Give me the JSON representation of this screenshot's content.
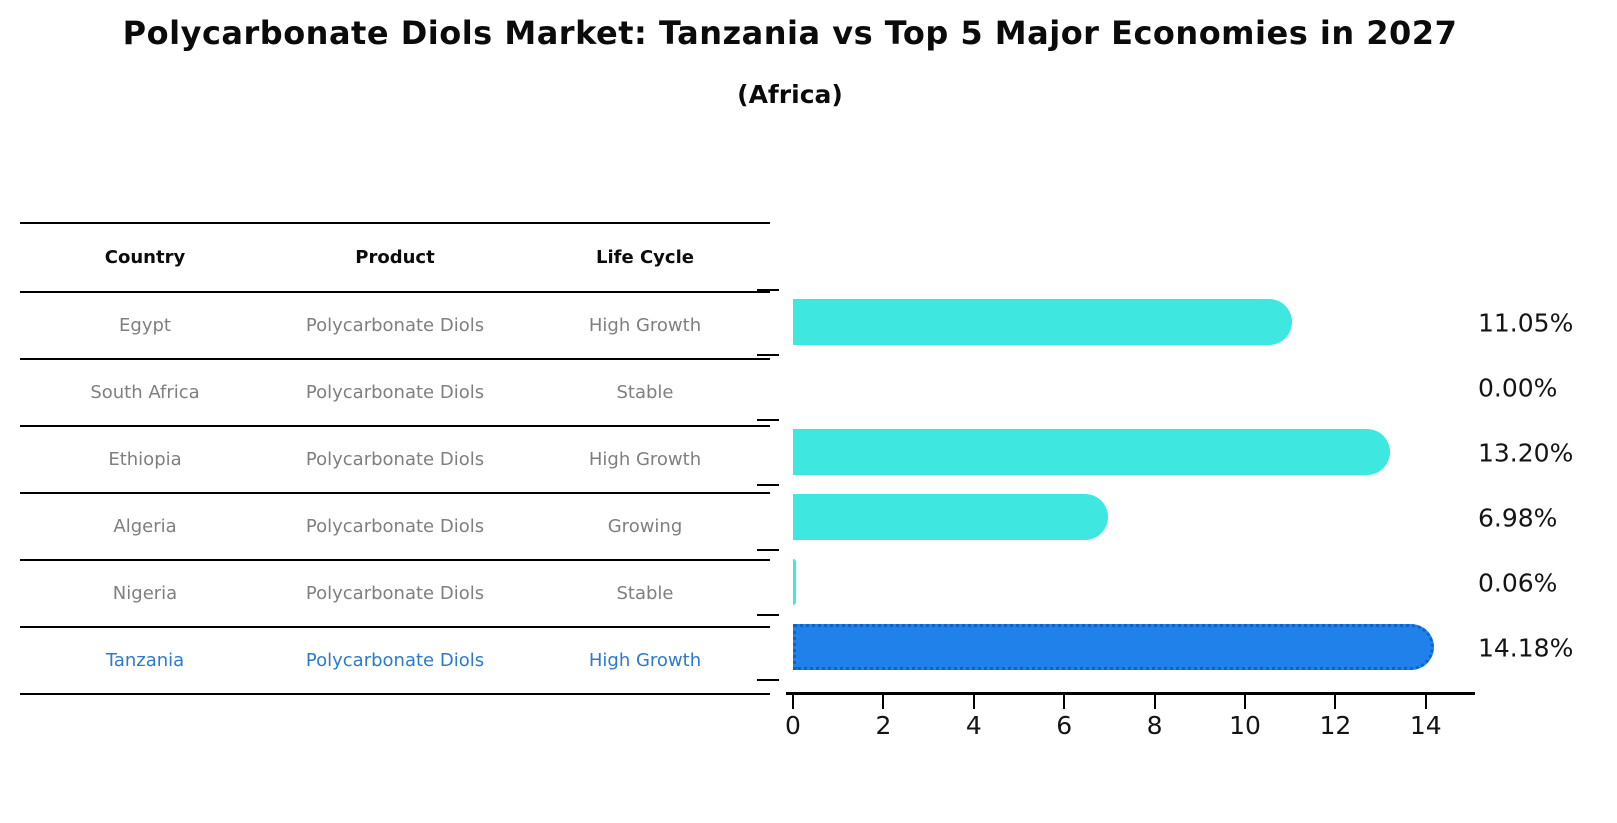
{
  "title": "Polycarbonate Diols Market: Tanzania vs Top 5 Major Economies in 2027",
  "subtitle": "(Africa)",
  "table": {
    "headers": [
      "Country",
      "Product",
      "Life Cycle"
    ],
    "rows": [
      {
        "country": "Egypt",
        "product": "Polycarbonate Diols",
        "life_cycle": "High Growth",
        "highlight": false
      },
      {
        "country": "South Africa",
        "product": "Polycarbonate Diols",
        "life_cycle": "Stable",
        "highlight": false
      },
      {
        "country": "Ethiopia",
        "product": "Polycarbonate Diols",
        "life_cycle": "High Growth",
        "highlight": false
      },
      {
        "country": "Algeria",
        "product": "Polycarbonate Diols",
        "life_cycle": "Growing",
        "highlight": false
      },
      {
        "country": "Nigeria",
        "product": "Polycarbonate Diols",
        "life_cycle": "Stable",
        "highlight": false
      },
      {
        "country": "Tanzania",
        "product": "Polycarbonate Diols",
        "life_cycle": "High Growth",
        "highlight": true
      }
    ]
  },
  "chart_data": {
    "type": "bar",
    "orientation": "horizontal",
    "title": "Polycarbonate Diols Market: Tanzania vs Top 5 Major Economies in 2027 (Africa)",
    "categories": [
      "Egypt",
      "South Africa",
      "Ethiopia",
      "Algeria",
      "Nigeria",
      "Tanzania"
    ],
    "values": [
      11.05,
      0.0,
      13.2,
      6.98,
      0.06,
      14.18
    ],
    "value_labels": [
      "11.05%",
      "0.00%",
      "13.20%",
      "6.98%",
      "0.06%",
      "14.18%"
    ],
    "highlight_index": 5,
    "xlim": [
      0,
      15
    ],
    "x_ticks": [
      0,
      2,
      4,
      6,
      8,
      10,
      12,
      14
    ],
    "grid": false,
    "legend": false,
    "bar_color": "#3ee7df",
    "highlight_bar_color": "#2181ea",
    "highlight_border_color": "#0f62c8",
    "table_text_color": "#7f7f7f",
    "highlight_text_color": "#2a7ad0"
  }
}
